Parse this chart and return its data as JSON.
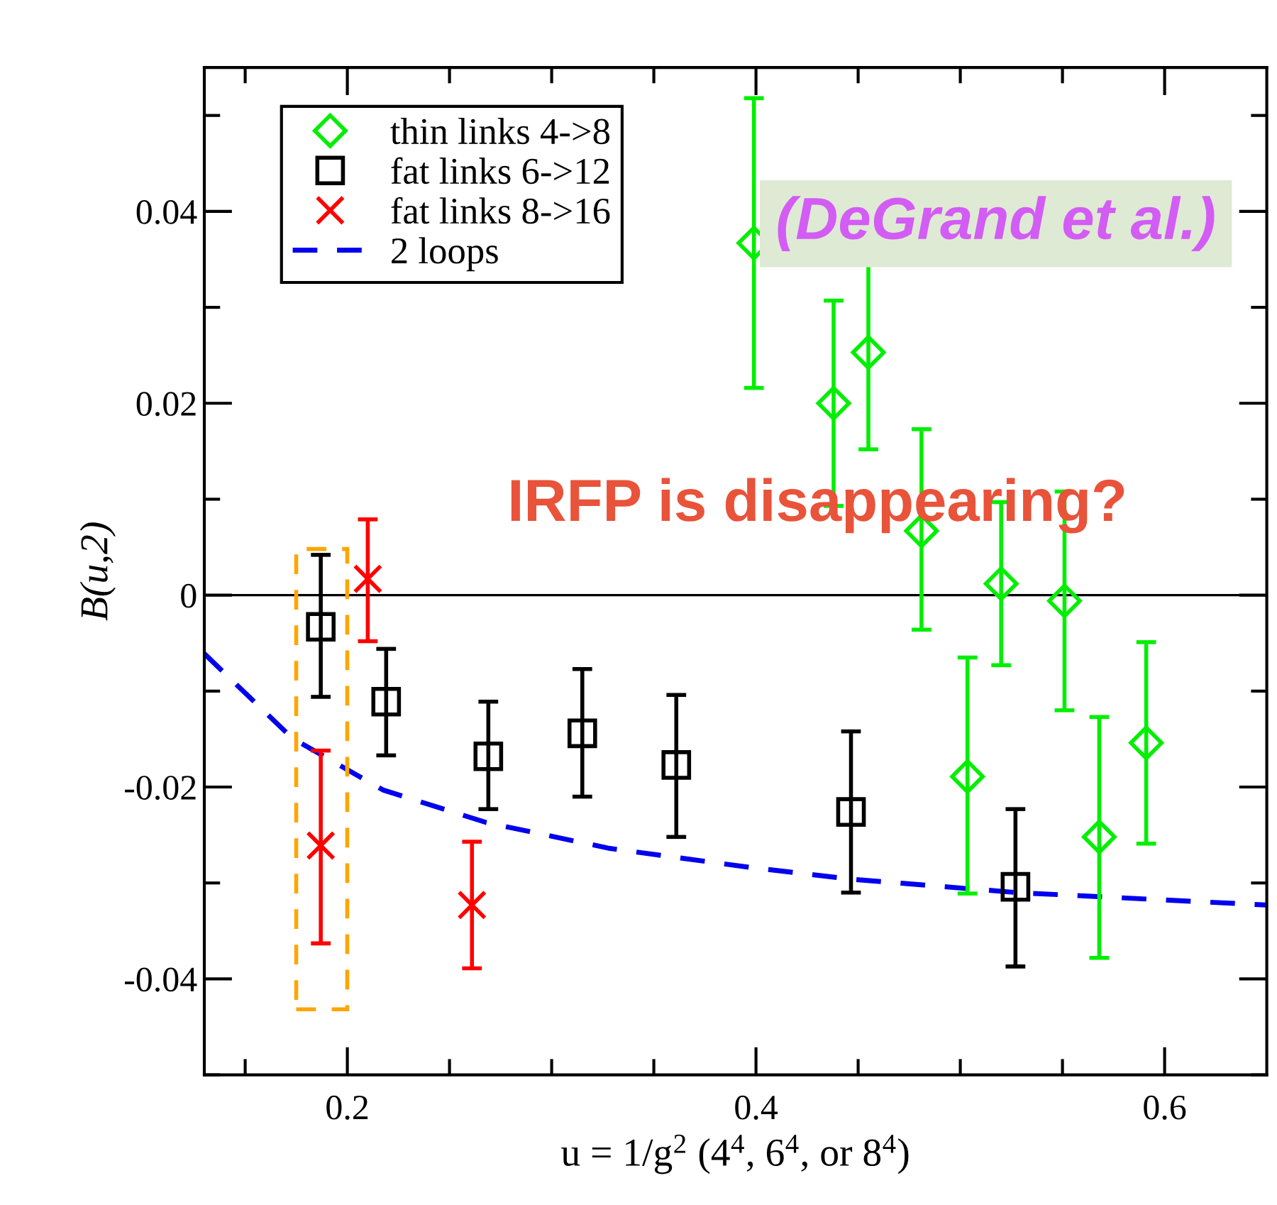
{
  "chart_data": {
    "type": "scatter",
    "xlabel": "u = 1/g$^{2}$ (4$^{4}$, 6$^{4}$, or 8$^{4}$)",
    "ylabel": "B(u,2)",
    "xlim": [
      0.13,
      0.65
    ],
    "ylim": [
      -0.05,
      0.055
    ],
    "xticks": [
      {
        "value": 0.15,
        "label": null
      },
      0.2,
      {
        "value": 0.25,
        "label": null
      },
      {
        "value": 0.3,
        "label": null
      },
      {
        "value": 0.35,
        "label": null
      },
      0.4,
      {
        "value": 0.45,
        "label": null
      },
      {
        "value": 0.5,
        "label": null
      },
      {
        "value": 0.55,
        "label": null
      },
      0.6
    ],
    "yticks": [
      {
        "value": -0.05,
        "label": null
      },
      -0.04,
      {
        "value": -0.03,
        "label": null
      },
      -0.02,
      {
        "value": -0.01,
        "label": null
      },
      0,
      {
        "value": 0.01,
        "label": null
      },
      0.02,
      {
        "value": 0.03,
        "label": null
      },
      0.04,
      {
        "value": 0.05,
        "label": null
      }
    ],
    "grid": false,
    "legend": "top left",
    "ref_lines": [
      {
        "axis": "y",
        "value": 0,
        "color": "#000000",
        "line_style": "solid"
      }
    ],
    "annotations": [
      "(DeGrand et al.)",
      "IRFP is disappearing?"
    ],
    "series": [
      {
        "name": "thin links 4->8",
        "marker": "diamond",
        "color": "#00ee00",
        "x": [
          0.399,
          0.438,
          0.455,
          0.481,
          0.5035,
          0.52,
          0.551,
          0.568,
          0.591
        ],
        "values": [
          0.0367,
          0.02,
          0.0253,
          0.0067,
          -0.0189,
          0.0012,
          -0.0006,
          -0.0252,
          -0.0154
        ],
        "errors": [
          [
            0.0216,
            0.0518
          ],
          [
            0.0093,
            0.0307
          ],
          0.0101,
          [
            -0.0036,
            0.0173
          ],
          [
            -0.0311,
            -0.0065
          ],
          [
            -0.0073,
            0.0097
          ],
          [
            -0.012,
            0.0108
          ],
          [
            -0.0378,
            -0.0127
          ],
          [
            -0.0259,
            -0.0049
          ]
        ]
      },
      {
        "name": "fat links 6->12",
        "marker": "square",
        "color": "#000000",
        "x": [
          0.187,
          0.219,
          0.269,
          0.315,
          0.361,
          0.4465,
          0.527
        ],
        "values": [
          -0.0033,
          -0.0111,
          -0.0168,
          -0.0144,
          -0.0177,
          -0.0226,
          -0.0304
        ],
        "errors": [
          [
            -0.0106,
            0.0042
          ],
          [
            -0.0167,
            -0.0056
          ],
          [
            -0.0223,
            -0.0111
          ],
          [
            -0.021,
            -0.0077
          ],
          [
            -0.0252,
            -0.0104
          ],
          [
            -0.031,
            -0.0142
          ],
          [
            -0.0387,
            -0.0223
          ]
        ]
      },
      {
        "name": "fat links 8->16",
        "marker": "cross",
        "color": "#ff0000",
        "x": [
          0.21,
          0.187,
          0.261
        ],
        "values": [
          0.0017,
          -0.0261,
          -0.0323
        ],
        "errors": [
          [
            -0.0048,
            0.0079
          ],
          [
            -0.0363,
            -0.0162
          ],
          [
            -0.0389,
            -0.0257
          ]
        ]
      },
      {
        "name": "2 loops",
        "type": "line",
        "marker": "none",
        "line_style": "dashed",
        "color": "#0000ee",
        "x": [
          0.13,
          0.173,
          0.2174,
          0.268,
          0.3285,
          0.398,
          0.4465,
          0.5276,
          0.65
        ],
        "values": [
          -0.0061,
          -0.0149,
          -0.0203,
          -0.0237,
          -0.0264,
          -0.0284,
          -0.0296,
          -0.031,
          -0.0323
        ]
      }
    ]
  }
}
